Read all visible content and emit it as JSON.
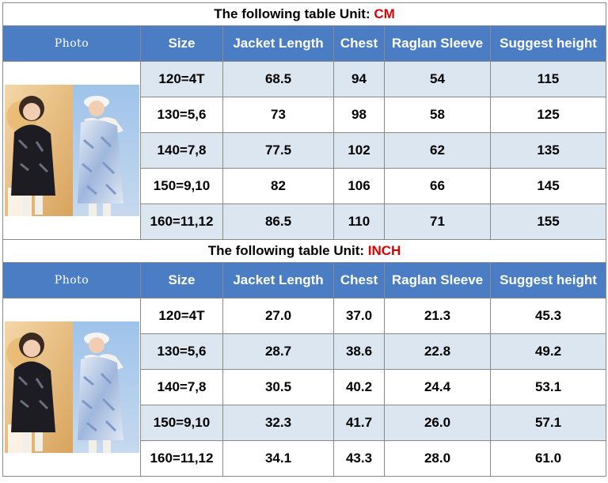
{
  "cm_table": {
    "title_prefix": "The following table Unit: ",
    "unit": "CM",
    "headers": [
      "Photo",
      "Size",
      "Jacket Length",
      "Chest",
      "Raglan Sleeve",
      "Suggest height"
    ],
    "rows": [
      {
        "size": "120=4T",
        "jacket_length": "68.5",
        "chest": "94",
        "raglan_sleeve": "54",
        "suggest_height": "115"
      },
      {
        "size": "130=5,6",
        "jacket_length": "73",
        "chest": "98",
        "raglan_sleeve": "58",
        "suggest_height": "125"
      },
      {
        "size": "140=7,8",
        "jacket_length": "77.5",
        "chest": "102",
        "raglan_sleeve": "62",
        "suggest_height": "135"
      },
      {
        "size": "150=9,10",
        "jacket_length": "82",
        "chest": "106",
        "raglan_sleeve": "66",
        "suggest_height": "145"
      },
      {
        "size": "160=11,12",
        "jacket_length": "86.5",
        "chest": "110",
        "raglan_sleeve": "71",
        "suggest_height": "155"
      }
    ]
  },
  "inch_table": {
    "title_prefix": "The following table Unit: ",
    "unit": "INCH",
    "headers": [
      "Photo",
      "Size",
      "Jacket Length",
      "Chest",
      "Raglan Sleeve",
      "Suggest height"
    ],
    "rows": [
      {
        "size": "120=4T",
        "jacket_length": "27.0",
        "chest": "37.0",
        "raglan_sleeve": "21.3",
        "suggest_height": "45.3"
      },
      {
        "size": "130=5,6",
        "jacket_length": "28.7",
        "chest": "38.6",
        "raglan_sleeve": "22.8",
        "suggest_height": "49.2"
      },
      {
        "size": "140=7,8",
        "jacket_length": "30.5",
        "chest": "40.2",
        "raglan_sleeve": "24.4",
        "suggest_height": "53.1"
      },
      {
        "size": "150=9,10",
        "jacket_length": "32.3",
        "chest": "41.7",
        "raglan_sleeve": "26.0",
        "suggest_height": "57.1"
      },
      {
        "size": "160=11,12",
        "jacket_length": "34.1",
        "chest": "43.3",
        "raglan_sleeve": "28.0",
        "suggest_height": "61.0"
      }
    ]
  },
  "colors": {
    "header_bg": "#4a7dc4",
    "unit_text": "#e00000",
    "band_row": "#dce6f1",
    "grid": "#8a8a8a"
  },
  "photo": {
    "description_icon": "product-photo"
  }
}
